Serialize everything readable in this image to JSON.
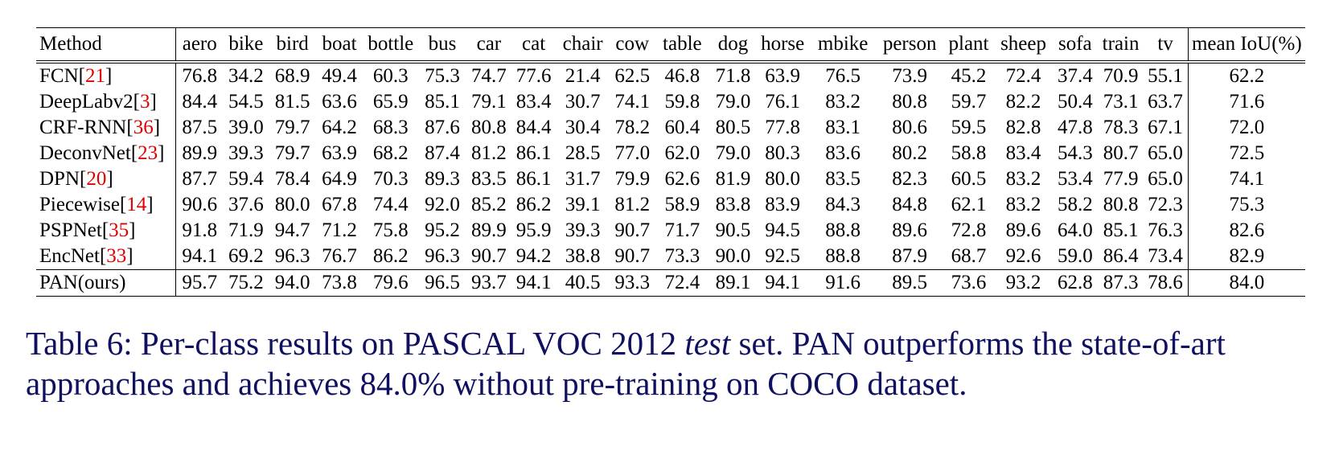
{
  "table": {
    "method_header": "Method",
    "classes": [
      "aero",
      "bike",
      "bird",
      "boat",
      "bottle",
      "bus",
      "car",
      "cat",
      "chair",
      "cow",
      "table",
      "dog",
      "horse",
      "mbike",
      "person",
      "plant",
      "sheep",
      "sofa",
      "train",
      "tv"
    ],
    "mean_header": "mean IoU(%)",
    "rows": [
      {
        "name": "FCN",
        "ref": "21",
        "values": [
          "76.8",
          "34.2",
          "68.9",
          "49.4",
          "60.3",
          "75.3",
          "74.7",
          "77.6",
          "21.4",
          "62.5",
          "46.8",
          "71.8",
          "63.9",
          "76.5",
          "73.9",
          "45.2",
          "72.4",
          "37.4",
          "70.9",
          "55.1"
        ],
        "mean": "62.2",
        "bold": []
      },
      {
        "name": "DeepLabv2",
        "ref": "3",
        "values": [
          "84.4",
          "54.5",
          "81.5",
          "63.6",
          "65.9",
          "85.1",
          "79.1",
          "83.4",
          "30.7",
          "74.1",
          "59.8",
          "79.0",
          "76.1",
          "83.2",
          "80.8",
          "59.7",
          "82.2",
          "50.4",
          "73.1",
          "63.7"
        ],
        "mean": "71.6",
        "bold": []
      },
      {
        "name": "CRF-RNN",
        "ref": "36",
        "values": [
          "87.5",
          "39.0",
          "79.7",
          "64.2",
          "68.3",
          "87.6",
          "80.8",
          "84.4",
          "30.4",
          "78.2",
          "60.4",
          "80.5",
          "77.8",
          "83.1",
          "80.6",
          "59.5",
          "82.8",
          "47.8",
          "78.3",
          "67.1"
        ],
        "mean": "72.0",
        "bold": []
      },
      {
        "name": "DeconvNet",
        "ref": "23",
        "values": [
          "89.9",
          "39.3",
          "79.7",
          "63.9",
          "68.2",
          "87.4",
          "81.2",
          "86.1",
          "28.5",
          "77.0",
          "62.0",
          "79.0",
          "80.3",
          "83.6",
          "80.2",
          "58.8",
          "83.4",
          "54.3",
          "80.7",
          "65.0"
        ],
        "mean": "72.5",
        "bold": []
      },
      {
        "name": "DPN",
        "ref": "20",
        "values": [
          "87.7",
          "59.4",
          "78.4",
          "64.9",
          "70.3",
          "89.3",
          "83.5",
          "86.1",
          "31.7",
          "79.9",
          "62.6",
          "81.9",
          "80.0",
          "83.5",
          "82.3",
          "60.5",
          "83.2",
          "53.4",
          "77.9",
          "65.0"
        ],
        "mean": "74.1",
        "bold": []
      },
      {
        "name": "Piecewise",
        "ref": "14",
        "values": [
          "90.6",
          "37.6",
          "80.0",
          "67.8",
          "74.4",
          "92.0",
          "85.2",
          "86.2",
          "39.1",
          "81.2",
          "58.9",
          "83.8",
          "83.9",
          "84.3",
          "84.8",
          "62.1",
          "83.2",
          "58.2",
          "80.8",
          "72.3"
        ],
        "mean": "75.3",
        "bold": []
      },
      {
        "name": "PSPNet",
        "ref": "35",
        "values": [
          "91.8",
          "71.9",
          "94.7",
          "71.2",
          "75.8",
          "95.2",
          "89.9",
          "95.9",
          "39.3",
          "90.7",
          "71.7",
          "90.5",
          "94.5",
          "88.8",
          "89.6",
          "72.8",
          "89.6",
          "64.0",
          "85.1",
          "76.3"
        ],
        "mean": "82.6",
        "bold": [
          7,
          11,
          12,
          14,
          17
        ]
      },
      {
        "name": "EncNet",
        "ref": "33",
        "values": [
          "94.1",
          "69.2",
          "96.3",
          "76.7",
          "86.2",
          "96.3",
          "90.7",
          "94.2",
          "38.8",
          "90.7",
          "73.3",
          "90.0",
          "92.5",
          "88.8",
          "87.9",
          "68.7",
          "92.6",
          "59.0",
          "86.4",
          "73.4"
        ],
        "mean": "82.9",
        "bold": [
          2,
          3,
          4,
          10
        ]
      },
      {
        "name": "PAN(ours)",
        "ref": "",
        "values": [
          "95.7",
          "75.2",
          "94.0",
          "73.8",
          "79.6",
          "96.5",
          "93.7",
          "94.1",
          "40.5",
          "93.3",
          "72.4",
          "89.1",
          "94.1",
          "91.6",
          "89.5",
          "73.6",
          "93.2",
          "62.8",
          "87.3",
          "78.6"
        ],
        "mean": "84.0",
        "bold": [
          0,
          1,
          5,
          6,
          8,
          9,
          13,
          15,
          16,
          18,
          19
        ]
      }
    ]
  },
  "caption": {
    "prefix": "Table 6: Per-class results on PASCAL VOC 2012 ",
    "italic": "test",
    "suffix": " set. PAN outperforms the state-of-art approaches and achieves 84.0% without pre-training on COCO dataset."
  },
  "colors": {
    "reference": "#e00000",
    "caption": "#101060"
  }
}
